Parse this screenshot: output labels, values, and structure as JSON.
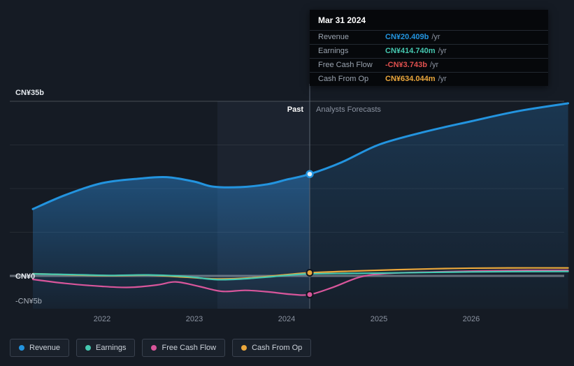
{
  "colors": {
    "background": "#151b24",
    "revenue": "#2394df",
    "earnings": "#45c8b0",
    "free_cash_flow": "#d8569b",
    "cash_from_op": "#eba73c",
    "negative_value": "#e0504e",
    "axis_text": "#8b93a1",
    "grid_zero_line": "#99a1ac",
    "divider": "#5a6472",
    "highlight_band": "rgba(173,203,255,0.05)"
  },
  "tooltip": {
    "date": "Mar 31 2024",
    "rows": [
      {
        "label": "Revenue",
        "value": "CN¥20.409b",
        "unit": "/yr",
        "color": "#2394df"
      },
      {
        "label": "Earnings",
        "value": "CN¥414.740m",
        "unit": "/yr",
        "color": "#45c8b0"
      },
      {
        "label": "Free Cash Flow",
        "value": "-CN¥3.743b",
        "unit": "/yr",
        "color": "#e0504e"
      },
      {
        "label": "Cash From Op",
        "value": "CN¥634.044m",
        "unit": "/yr",
        "color": "#eba73c"
      }
    ]
  },
  "legend": {
    "items": [
      {
        "label": "Revenue",
        "color": "#2394df"
      },
      {
        "label": "Earnings",
        "color": "#45c8b0"
      },
      {
        "label": "Free Cash Flow",
        "color": "#d8569b"
      },
      {
        "label": "Cash From Op",
        "color": "#eba73c"
      }
    ]
  },
  "chart_data": {
    "type": "line",
    "y_unit": "CN¥ billions per year",
    "ylim": [
      -6.5,
      36
    ],
    "x_ticks": [
      "2022",
      "2023",
      "2024",
      "2025",
      "2026"
    ],
    "y_ticks": [
      {
        "label": "CN¥35b",
        "value": 35
      },
      {
        "label": "CN¥0",
        "value": 0
      },
      {
        "label": "-CN¥5b",
        "value": -5
      }
    ],
    "gridline_values": [
      35,
      26.25,
      17.5,
      8.75,
      0
    ],
    "divider_x": 2024.25,
    "highlight_band": [
      2023.25,
      2024.25
    ],
    "past_label": "Past",
    "forecast_label": "Analysts Forecasts",
    "series": [
      {
        "name": "Revenue",
        "color": "#2394df",
        "area": true,
        "marker_value": 20.409,
        "x": [
          2021.25,
          2021.6,
          2022.0,
          2022.4,
          2022.7,
          2023.0,
          2023.2,
          2023.5,
          2023.8,
          2024.0,
          2024.25,
          2024.6,
          2025.0,
          2025.5,
          2026.0,
          2026.5,
          2027.05
        ],
        "y": [
          13.4,
          16.2,
          18.6,
          19.5,
          19.8,
          18.9,
          17.9,
          17.8,
          18.4,
          19.3,
          20.409,
          22.8,
          26.3,
          28.9,
          31.0,
          33.0,
          34.6
        ]
      },
      {
        "name": "Earnings",
        "color": "#45c8b0",
        "area": false,
        "marker_value": null,
        "x": [
          2021.25,
          2021.7,
          2022.1,
          2022.5,
          2022.9,
          2023.25,
          2023.6,
          2024.0,
          2024.25,
          2024.7,
          2025.2,
          2025.8,
          2026.4,
          2027.05
        ],
        "y": [
          0.4,
          0.25,
          0.1,
          0.2,
          -0.1,
          -0.75,
          -0.5,
          0.1,
          0.415,
          0.5,
          0.6,
          0.75,
          0.85,
          0.9
        ]
      },
      {
        "name": "Free Cash Flow",
        "color": "#d8569b",
        "area": false,
        "marker_value": -3.743,
        "x": [
          2021.25,
          2021.6,
          2022.0,
          2022.3,
          2022.6,
          2022.8,
          2023.05,
          2023.3,
          2023.55,
          2023.8,
          2024.05,
          2024.25,
          2024.5,
          2024.8,
          2025.1,
          2025.6,
          2026.1,
          2026.6,
          2027.05
        ],
        "y": [
          -0.7,
          -1.5,
          -2.1,
          -2.3,
          -1.8,
          -1.2,
          -2.1,
          -3.1,
          -2.9,
          -3.2,
          -3.7,
          -3.743,
          -2.3,
          -0.2,
          0.5,
          0.8,
          1.0,
          1.1,
          1.1
        ]
      },
      {
        "name": "Cash From Op",
        "color": "#eba73c",
        "area": false,
        "marker_value": 0.634,
        "x": [
          2021.25,
          2021.7,
          2022.1,
          2022.5,
          2022.9,
          2023.25,
          2023.6,
          2024.0,
          2024.25,
          2024.7,
          2025.2,
          2025.8,
          2026.4,
          2027.05
        ],
        "y": [
          0.45,
          0.2,
          0.05,
          0.15,
          -0.25,
          -0.6,
          -0.4,
          0.25,
          0.634,
          0.95,
          1.25,
          1.5,
          1.6,
          1.6
        ]
      }
    ]
  }
}
